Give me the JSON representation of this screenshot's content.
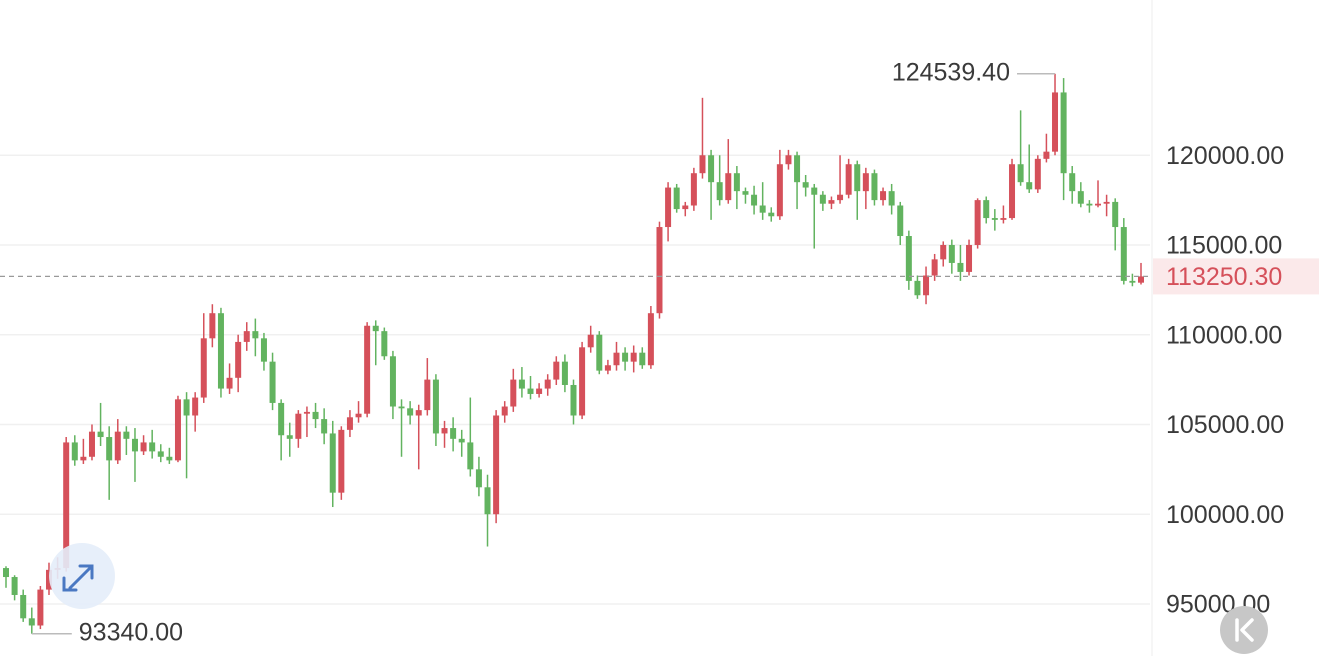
{
  "chart_data": {
    "type": "candlestick",
    "open": [
      97000,
      96500,
      95500,
      94200,
      93800,
      95800,
      96900,
      97000,
      104000,
      103000,
      103200,
      104600,
      104300,
      103000,
      104600,
      104200,
      103500,
      104000,
      103500,
      103200,
      103000,
      106400,
      105500,
      106500,
      109800,
      111200,
      107000,
      107600,
      109600,
      110200,
      109800,
      108500,
      106200,
      104400,
      104200,
      105600,
      105700,
      105300,
      104500,
      101200,
      104700,
      105400,
      105600,
      110500,
      110200,
      108800,
      106000,
      105900,
      105500,
      105800,
      107500,
      104500,
      104800,
      104200,
      104000,
      102500,
      101500,
      100000,
      105500,
      106000,
      107500,
      107000,
      106700,
      107000,
      107500,
      108500,
      107200,
      105500,
      109300,
      110000,
      108000,
      108300,
      109000,
      108500,
      109000,
      108300,
      111200,
      116000,
      118200,
      117000,
      117200,
      119000,
      120000,
      118500,
      117500,
      119000,
      118000,
      117800,
      117200,
      116800,
      116600,
      119500,
      120000,
      118500,
      118200,
      117800,
      117300,
      117500,
      117800,
      119500,
      118000,
      119000,
      117500,
      118000,
      117200,
      115500,
      113000,
      112200,
      113300,
      114200,
      115000,
      114000,
      113500,
      115000,
      117500,
      116500,
      116400,
      116500,
      119500,
      118500,
      118100,
      119800,
      120200,
      123500,
      119000,
      118000,
      117300,
      117200,
      117300,
      117400,
      116000,
      113000,
      112900
    ],
    "high": [
      97100,
      96600,
      95800,
      94800,
      96000,
      97300,
      97600,
      104300,
      104400,
      104200,
      105000,
      106200,
      104900,
      105300,
      104900,
      104800,
      104400,
      104700,
      103900,
      103700,
      106600,
      106800,
      106800,
      111200,
      111700,
      111500,
      108400,
      110000,
      110700,
      110900,
      110100,
      109000,
      106400,
      105100,
      105800,
      106000,
      106200,
      105900,
      105200,
      104900,
      105800,
      106300,
      110700,
      110800,
      110400,
      109100,
      106400,
      106300,
      106100,
      108700,
      107800,
      105200,
      105400,
      104700,
      106500,
      103200,
      102200,
      105800,
      106300,
      108100,
      108200,
      107700,
      107300,
      107800,
      108800,
      108900,
      107500,
      109600,
      110500,
      110200,
      108600,
      109600,
      109300,
      109400,
      109300,
      111600,
      116300,
      118500,
      118400,
      117400,
      119300,
      123200,
      120300,
      120000,
      120900,
      119400,
      118200,
      118300,
      118500,
      117100,
      120300,
      120300,
      120200,
      118900,
      118400,
      118000,
      117700,
      120000,
      119800,
      119700,
      119300,
      119200,
      118200,
      118400,
      117400,
      115800,
      113300,
      113800,
      114500,
      115200,
      115300,
      115000,
      115300,
      117600,
      117700,
      117000,
      117200,
      119800,
      122500,
      120600,
      120000,
      121200,
      124539.4,
      124300,
      119400,
      118500,
      117500,
      118600,
      117800,
      117600,
      116500,
      113400,
      114000
    ],
    "low": [
      95900,
      95200,
      94000,
      93340,
      93600,
      95500,
      96400,
      96800,
      102700,
      102800,
      103000,
      103800,
      100800,
      102800,
      103300,
      101800,
      103300,
      103100,
      102900,
      102800,
      102900,
      102000,
      104600,
      106200,
      109300,
      106500,
      106700,
      106800,
      109100,
      108800,
      108000,
      105800,
      103000,
      103200,
      103700,
      104300,
      104800,
      103900,
      100400,
      100800,
      104300,
      105100,
      105400,
      108300,
      108600,
      105300,
      103200,
      105000,
      102500,
      105500,
      103800,
      103700,
      103500,
      103200,
      102100,
      101000,
      98200,
      99500,
      105100,
      105700,
      106500,
      106400,
      106500,
      106600,
      107200,
      106800,
      105000,
      105300,
      109000,
      107800,
      107800,
      108000,
      108000,
      107900,
      108100,
      108100,
      110900,
      115200,
      116800,
      116600,
      116900,
      118700,
      116400,
      117200,
      117300,
      117000,
      117300,
      116700,
      116400,
      116300,
      116400,
      119200,
      117000,
      117700,
      114800,
      116900,
      117000,
      117300,
      117600,
      116400,
      117000,
      117200,
      117200,
      116700,
      115000,
      112500,
      112000,
      111700,
      113000,
      113800,
      113400,
      113000,
      113300,
      114800,
      116200,
      115800,
      116200,
      116400,
      118300,
      117900,
      117900,
      119600,
      120000,
      117500,
      117300,
      117100,
      116800,
      117100,
      116600,
      114700,
      112800,
      112700,
      112800
    ],
    "close": [
      96500,
      95500,
      94200,
      93800,
      95800,
      96900,
      97000,
      104000,
      103000,
      103200,
      104600,
      104300,
      103000,
      104600,
      104200,
      103500,
      104000,
      103500,
      103200,
      103000,
      106400,
      105500,
      106500,
      109800,
      111200,
      107000,
      107600,
      109600,
      110200,
      109800,
      108500,
      106200,
      104400,
      104200,
      105600,
      105700,
      105300,
      104500,
      101200,
      104700,
      105400,
      105600,
      110500,
      110200,
      108800,
      106000,
      105900,
      105500,
      105800,
      107500,
      104500,
      104800,
      104200,
      104000,
      102500,
      101500,
      100000,
      105500,
      106000,
      107500,
      107000,
      106700,
      107000,
      107500,
      108500,
      107200,
      105500,
      109300,
      110000,
      108000,
      108300,
      109000,
      108500,
      109000,
      108300,
      111200,
      116000,
      118200,
      117000,
      117200,
      119000,
      120000,
      118500,
      117500,
      119000,
      118000,
      117800,
      117200,
      116800,
      116600,
      119500,
      120000,
      118500,
      118200,
      117800,
      117300,
      117500,
      117800,
      119500,
      118000,
      119000,
      117500,
      118000,
      117200,
      115500,
      113000,
      112200,
      113300,
      114200,
      115000,
      114000,
      113500,
      115000,
      117500,
      116500,
      116400,
      116500,
      119500,
      118500,
      118100,
      119800,
      120200,
      123500,
      119000,
      118000,
      117300,
      117200,
      117300,
      117400,
      116000,
      113000,
      112900,
      113250.3
    ],
    "up_color": "#d5505a",
    "down_color": "#62b35f",
    "ylim": [
      92100,
      128650
    ],
    "yticks": [
      {
        "value": 95000,
        "label": "95000.00"
      },
      {
        "value": 100000,
        "label": "100000.00"
      },
      {
        "value": 105000,
        "label": "105000.00"
      },
      {
        "value": 110000,
        "label": "110000.00"
      },
      {
        "value": 115000,
        "label": "115000.00"
      },
      {
        "value": 120000,
        "label": "120000.00"
      }
    ],
    "grid": true,
    "max_marker": {
      "value": 124539.4,
      "label": "124539.40"
    },
    "min_marker": {
      "value": 93340,
      "label": "93340.00"
    },
    "last_price": {
      "value": 113250.3,
      "label": "113250.30"
    }
  }
}
